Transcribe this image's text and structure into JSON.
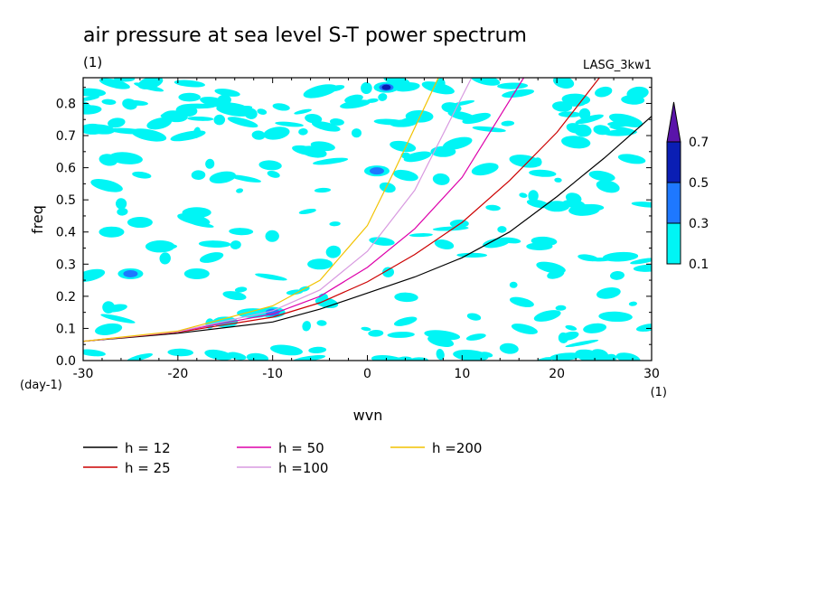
{
  "chart_data": {
    "type": "line",
    "title": "air pressure at sea level S-T power spectrum",
    "subtitle": "(1)",
    "tag": "LASG_3kw1",
    "xlabel": "wvn",
    "ylabel": "freq",
    "x_unit_label": "(1)",
    "y_unit_label": "(day-1)",
    "xlim": [
      -30,
      30
    ],
    "ylim": [
      0,
      0.88
    ],
    "x_ticks": [
      -30,
      -20,
      -10,
      0,
      10,
      20,
      30
    ],
    "x_tick_labels": [
      "-30",
      "-20",
      "-10",
      "0",
      "10",
      "20",
      "30"
    ],
    "y_ticks": [
      0,
      0.1,
      0.2,
      0.3,
      0.4,
      0.5,
      0.6,
      0.7,
      0.8
    ],
    "y_tick_labels": [
      "0.0",
      "0.1",
      "0.2",
      "0.3",
      "0.4",
      "0.5",
      "0.6",
      "0.7",
      "0.8"
    ],
    "grid": false,
    "series": [
      {
        "name": "h = 12",
        "color": "#000000",
        "x": [
          -30,
          -20,
          -10,
          -5,
          0,
          5,
          10,
          15,
          20,
          25,
          30
        ],
        "y": [
          0.06,
          0.085,
          0.12,
          0.16,
          0.21,
          0.26,
          0.32,
          0.4,
          0.51,
          0.63,
          0.76
        ]
      },
      {
        "name": "h = 25",
        "color": "#cc0000",
        "x": [
          -30,
          -20,
          -10,
          -5,
          0,
          5,
          10,
          15,
          20,
          24.5
        ],
        "y": [
          0.06,
          0.088,
          0.135,
          0.18,
          0.245,
          0.33,
          0.43,
          0.56,
          0.71,
          0.88
        ]
      },
      {
        "name": "h = 50",
        "color": "#dd00aa",
        "x": [
          -30,
          -20,
          -10,
          -5,
          0,
          5,
          10,
          16.5
        ],
        "y": [
          0.06,
          0.09,
          0.145,
          0.2,
          0.29,
          0.41,
          0.57,
          0.88
        ]
      },
      {
        "name": "h =100",
        "color": "#d89ae0",
        "x": [
          -30,
          -20,
          -10,
          -5,
          0,
          5,
          11
        ],
        "y": [
          0.06,
          0.09,
          0.155,
          0.22,
          0.34,
          0.53,
          0.88
        ]
      },
      {
        "name": "h =200",
        "color": "#f2c200",
        "x": [
          -30,
          -20,
          -10,
          -5,
          0,
          3,
          7.5
        ],
        "y": [
          0.06,
          0.092,
          0.17,
          0.25,
          0.42,
          0.6,
          0.88
        ]
      }
    ],
    "colorbar": {
      "levels": [
        "0.1",
        "0.3",
        "0.5",
        "0.7"
      ],
      "colors": [
        "#00f5f5",
        "#1e78ff",
        "#0a1eb4",
        "#5a14aa"
      ],
      "extend": "max"
    },
    "shaded_field": {
      "description_levels": [
        0.1,
        0.3,
        0.5
      ],
      "blobs": [
        {
          "x": -27,
          "y": 0.4,
          "level": 0.1
        },
        {
          "x": -25,
          "y": 0.27,
          "level": 0.3
        },
        {
          "x": -24,
          "y": 0.43,
          "level": 0.1
        },
        {
          "x": -18,
          "y": 0.27,
          "level": 0.1
        },
        {
          "x": -10,
          "y": 0.15,
          "level": 0.3
        },
        {
          "x": 2,
          "y": 0.85,
          "level": 0.5
        },
        {
          "x": 1,
          "y": 0.59,
          "level": 0.3
        },
        {
          "x": -29,
          "y": 0.72,
          "level": 0.1
        },
        {
          "x": -15,
          "y": 0.12,
          "level": 0.1
        },
        {
          "x": 8,
          "y": 0.65,
          "level": 0.1
        },
        {
          "x": 20,
          "y": 0.48,
          "level": 0.1
        },
        {
          "x": -5,
          "y": 0.3,
          "level": 0.1
        }
      ]
    }
  },
  "legend": {
    "entries": [
      {
        "label": "h = 12",
        "color": "#000000"
      },
      {
        "label": "h = 25",
        "color": "#cc0000"
      },
      {
        "label": "h = 50",
        "color": "#dd00aa"
      },
      {
        "label": "h =100",
        "color": "#d89ae0"
      },
      {
        "label": "h =200",
        "color": "#f2c200"
      }
    ]
  }
}
